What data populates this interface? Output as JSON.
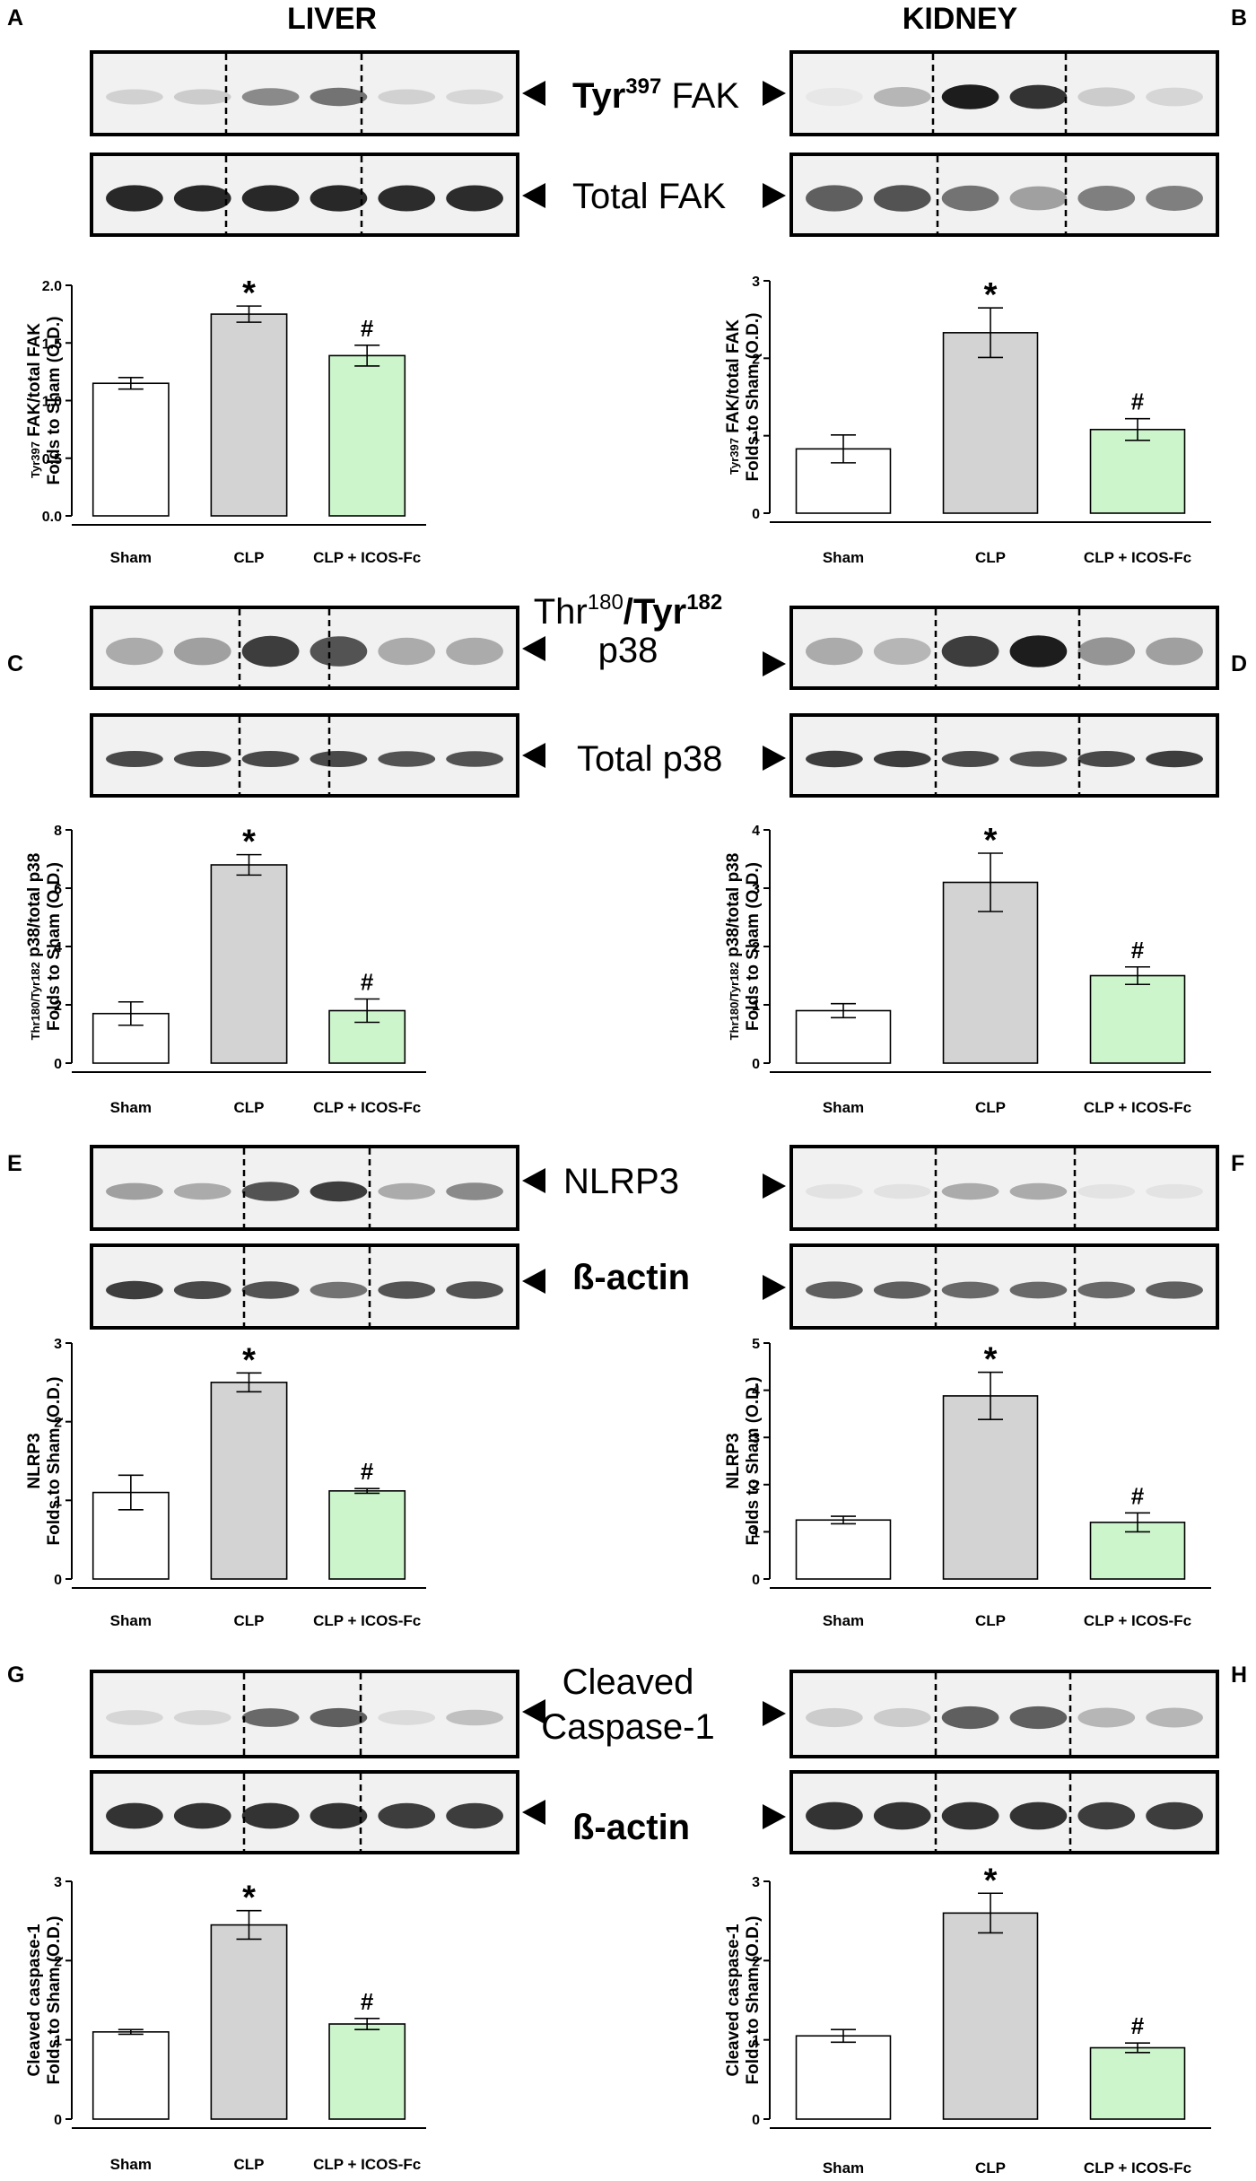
{
  "headers": {
    "left": "LIVER",
    "right": "KIDNEY"
  },
  "panel_letters": [
    "A",
    "B",
    "C",
    "D",
    "E",
    "F",
    "G",
    "H"
  ],
  "blot_labels": {
    "a_phospho": {
      "main": "Tyr",
      "sup": "397",
      "rest": " FAK"
    },
    "a_total": "Total FAK",
    "c_phospho_line1": {
      "a": "Thr",
      "asup": "180",
      "b": "/",
      "c": "Tyr",
      "csup": "182"
    },
    "c_phospho_line2": "p38",
    "c_total": "Total p38",
    "e_phospho": "NLRP3",
    "e_total": "ß-actin",
    "g_phospho_line1": "Cleaved",
    "g_phospho_line2": "Caspase-1",
    "g_total": "ß-actin"
  },
  "markers": {
    "star": "*",
    "hash": "#"
  },
  "colors": {
    "sham": "#ffffff",
    "clp": "#d3d3d3",
    "icos": "#ccf5cc",
    "edge": "#000000"
  },
  "chart_data": [
    {
      "panel": "A",
      "type": "bar",
      "categories": [
        "Sham",
        "CLP",
        "CLP + ICOS-Fc"
      ],
      "values": [
        1.15,
        1.75,
        1.39
      ],
      "errors": [
        0.05,
        0.07,
        0.09
      ],
      "ylim": [
        0,
        2.0
      ],
      "yticks": [
        "0.0",
        "0.5",
        "1.0",
        "1.5",
        "2.0"
      ],
      "ylabel_line1": {
        "sup": "Tyr397",
        "rest": " FAK/total FAK"
      },
      "ylabel_line2": "Folds to Sham (O.D.)",
      "significance": [
        "",
        "*",
        "#"
      ]
    },
    {
      "panel": "B",
      "type": "bar",
      "categories": [
        "Sham",
        "CLP",
        "CLP + ICOS-Fc"
      ],
      "values": [
        0.83,
        2.33,
        1.08
      ],
      "errors": [
        0.18,
        0.32,
        0.14
      ],
      "ylim": [
        0,
        3
      ],
      "yticks": [
        "0",
        "1",
        "2",
        "3"
      ],
      "ylabel_line1": {
        "sup": "Tyr397",
        "rest": " FAK/total FAK"
      },
      "ylabel_line2": "Folds to Sham (O.D.)",
      "significance": [
        "",
        "*",
        "#"
      ]
    },
    {
      "panel": "C",
      "type": "bar",
      "categories": [
        "Sham",
        "CLP",
        "CLP + ICOS-Fc"
      ],
      "values": [
        1.7,
        6.8,
        1.8
      ],
      "errors": [
        0.4,
        0.35,
        0.4
      ],
      "ylim": [
        0,
        8
      ],
      "yticks": [
        "0",
        "2",
        "4",
        "6",
        "8"
      ],
      "ylabel_line1": {
        "sup": "Thr180/Tyr182",
        "rest": " p38/total p38"
      },
      "ylabel_line2": "Folds to Sham (O.D.)",
      "significance": [
        "",
        "*",
        "#"
      ]
    },
    {
      "panel": "D",
      "type": "bar",
      "categories": [
        "Sham",
        "CLP",
        "CLP + ICOS-Fc"
      ],
      "values": [
        0.9,
        3.1,
        1.5
      ],
      "errors": [
        0.12,
        0.5,
        0.15
      ],
      "ylim": [
        0,
        4
      ],
      "yticks": [
        "0",
        "1",
        "2",
        "3",
        "4"
      ],
      "ylabel_line1": {
        "sup": "Thr180/Tyr182",
        "rest": " p38/total p38"
      },
      "ylabel_line2": "Folds to Sham (O.D.)",
      "significance": [
        "",
        "*",
        "#"
      ]
    },
    {
      "panel": "E",
      "type": "bar",
      "categories": [
        "Sham",
        "CLP",
        "CLP + ICOS-Fc"
      ],
      "values": [
        1.1,
        2.5,
        1.12
      ],
      "errors": [
        0.22,
        0.12,
        0.03
      ],
      "ylim": [
        0,
        3
      ],
      "yticks": [
        "0",
        "1",
        "2",
        "3"
      ],
      "ylabel_line1": {
        "sup": "",
        "rest": "NLRP3"
      },
      "ylabel_line2": "Folds to Sham (O.D.)",
      "significance": [
        "",
        "*",
        "#"
      ]
    },
    {
      "panel": "F",
      "type": "bar",
      "categories": [
        "Sham",
        "CLP",
        "CLP + ICOS-Fc"
      ],
      "values": [
        1.25,
        3.88,
        1.2
      ],
      "errors": [
        0.08,
        0.5,
        0.2
      ],
      "ylim": [
        0,
        5
      ],
      "yticks": [
        "0",
        "1",
        "2",
        "3",
        "4",
        "5"
      ],
      "ylabel_line1": {
        "sup": "",
        "rest": "NLRP3"
      },
      "ylabel_line2": "Folds to Sham (O.D.)",
      "significance": [
        "",
        "*",
        "#"
      ]
    },
    {
      "panel": "G",
      "type": "bar",
      "categories": [
        "Sham",
        "CLP",
        "CLP + ICOS-Fc"
      ],
      "values": [
        1.1,
        2.45,
        1.2
      ],
      "errors": [
        0.03,
        0.18,
        0.07
      ],
      "ylim": [
        0,
        3
      ],
      "yticks": [
        "0",
        "1",
        "2",
        "3"
      ],
      "ylabel_line1": {
        "sup": "",
        "rest": "Cleaved caspase-1"
      },
      "ylabel_line2": "Folds to Sham (O.D.)",
      "significance": [
        "",
        "*",
        "#"
      ]
    },
    {
      "panel": "H",
      "type": "bar",
      "categories": [
        "Sham",
        "CLP",
        "CLP + ICOS-Fc"
      ],
      "values": [
        1.05,
        2.6,
        0.9
      ],
      "errors": [
        0.08,
        0.25,
        0.06
      ],
      "ylim": [
        0,
        3
      ],
      "yticks": [
        "0",
        "1",
        "2",
        "3"
      ],
      "ylabel_line1": {
        "sup": "",
        "rest": "Cleaved caspase-1"
      },
      "ylabel_line2": "Folds to Sham (O.D.)",
      "significance": [
        "",
        "*",
        "#"
      ]
    }
  ]
}
